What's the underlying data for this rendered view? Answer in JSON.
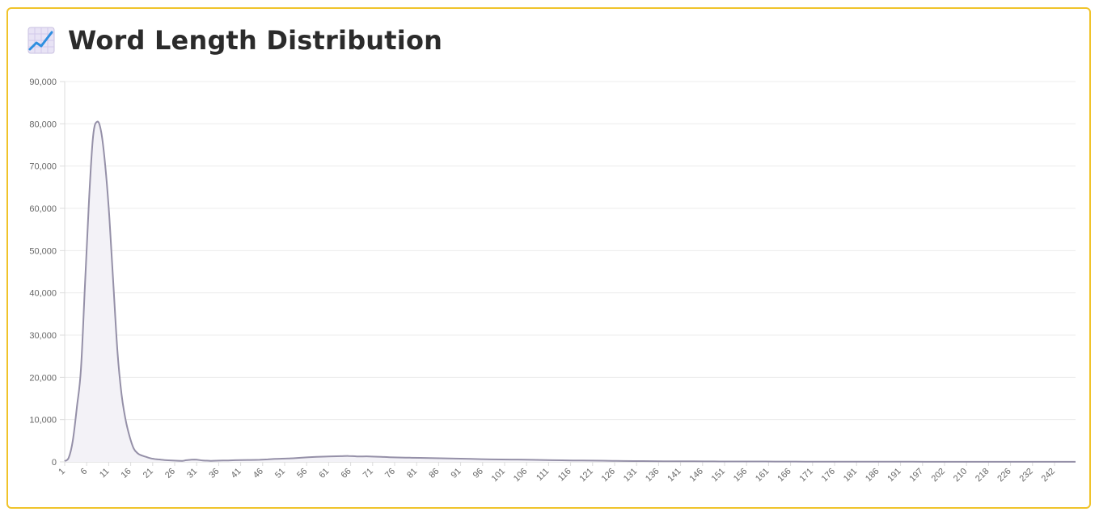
{
  "header": {
    "title": "Word Length Distribution",
    "icon": "chart-increasing-icon"
  },
  "colors": {
    "border": "#f0c32a",
    "line": "#9590a8",
    "fill": "#f3f2f7",
    "grid": "#ececec"
  },
  "chart_data": {
    "type": "area",
    "title": "Word Length Distribution",
    "xlabel": "",
    "ylabel": "",
    "ylim": [
      0,
      90000
    ],
    "yticks": [
      "0",
      "10,000",
      "20,000",
      "30,000",
      "40,000",
      "50,000",
      "60,000",
      "70,000",
      "80,000",
      "90,000"
    ],
    "xticks": [
      "1",
      "6",
      "11",
      "16",
      "21",
      "26",
      "31",
      "36",
      "41",
      "46",
      "51",
      "56",
      "61",
      "66",
      "71",
      "76",
      "81",
      "86",
      "91",
      "96",
      "101",
      "106",
      "111",
      "116",
      "121",
      "126",
      "131",
      "136",
      "141",
      "146",
      "151",
      "156",
      "161",
      "166",
      "171",
      "176",
      "181",
      "186",
      "191",
      "197",
      "202",
      "210",
      "218",
      "226",
      "232",
      "242"
    ],
    "grid": true,
    "legend": "none",
    "x": [
      1,
      2,
      3,
      4,
      5,
      6,
      7,
      8,
      9,
      10,
      11,
      12,
      13,
      14,
      15,
      16,
      17,
      18,
      19,
      20,
      21,
      22,
      23,
      24,
      25,
      26,
      28,
      30,
      31,
      33,
      35,
      37,
      39,
      41,
      43,
      46,
      49,
      51,
      53,
      56,
      58,
      61,
      63,
      66,
      69,
      71,
      73,
      76,
      79,
      81,
      86,
      91,
      96,
      101,
      106,
      111,
      116,
      121,
      126,
      131,
      136,
      141,
      146,
      151,
      156,
      161,
      166,
      171,
      176,
      181,
      186,
      191,
      197,
      202,
      210,
      218,
      226,
      232,
      242,
      250
    ],
    "values": [
      200,
      1000,
      5000,
      13000,
      22000,
      42000,
      62000,
      77000,
      80500,
      78000,
      70000,
      58000,
      42000,
      26000,
      16000,
      10000,
      6000,
      3200,
      2000,
      1500,
      1200,
      900,
      700,
      600,
      500,
      400,
      300,
      250,
      400,
      550,
      350,
      250,
      300,
      350,
      400,
      450,
      500,
      600,
      700,
      800,
      900,
      1100,
      1200,
      1300,
      1350,
      1400,
      1300,
      1300,
      1200,
      1100,
      1000,
      900,
      800,
      700,
      600,
      550,
      500,
      400,
      350,
      300,
      250,
      200,
      170,
      150,
      130,
      110,
      100,
      90,
      80,
      70,
      60,
      50,
      40,
      35,
      30,
      25,
      20,
      20,
      15,
      10
    ]
  }
}
